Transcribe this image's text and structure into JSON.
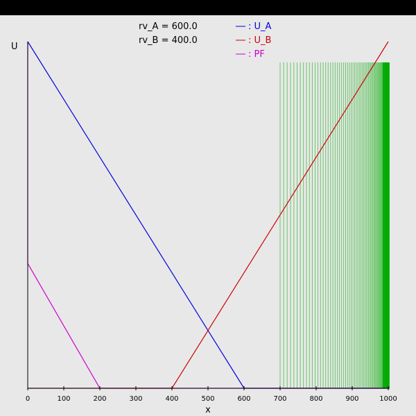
{
  "window": {
    "title_bar_color": "#000000"
  },
  "chart_data": {
    "type": "line",
    "xlabel": "x",
    "ylabel": "U",
    "xlim": [
      0,
      1000
    ],
    "ylim": [
      0,
      1
    ],
    "grid": false,
    "x_ticks": [
      "0",
      "100",
      "200",
      "300",
      "400",
      "500",
      "600",
      "700",
      "800",
      "900",
      "1000"
    ],
    "params": [
      {
        "text": "rv_A = 600.0"
      },
      {
        "text": "rv_B = 400.0"
      }
    ],
    "legend": {
      "position": "top-center",
      "entries": [
        {
          "text": ": U_A",
          "color": "#0000dd"
        },
        {
          "text": ": U_B",
          "color": "#cc0000"
        },
        {
          "text": ": PF",
          "color": "#cc00cc"
        }
      ]
    },
    "series": [
      {
        "name": "U_A",
        "color": "#0000dd",
        "points": [
          [
            0,
            1.0
          ],
          [
            600,
            0
          ],
          [
            1000,
            0
          ]
        ]
      },
      {
        "name": "U_B",
        "color": "#cc0000",
        "points": [
          [
            0,
            0
          ],
          [
            400,
            0
          ],
          [
            1000,
            1.0
          ]
        ]
      },
      {
        "name": "PF",
        "color": "#cc00cc",
        "points": [
          [
            0,
            1.0
          ],
          [
            0,
            0.36
          ],
          [
            200,
            0
          ],
          [
            1000,
            0
          ]
        ]
      }
    ],
    "marker_lines": {
      "color": "#00aa00",
      "x_start": 700,
      "x_end": 1000,
      "top_y": 0.94,
      "bottom_y": 0
    }
  }
}
